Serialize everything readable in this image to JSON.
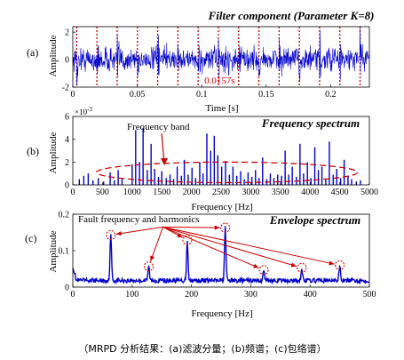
{
  "caption": "（MRPD 分析结果：(a)滤波分量；(b)频谱；(c)包络谱）",
  "colors": {
    "signal": "#0000cc",
    "marker": "#cc0000",
    "axis": "#000000",
    "annotation": "#cc0000"
  },
  "chart_data": [
    {
      "id": "a",
      "panel_label": "(a)",
      "type": "line",
      "title": "Filter component (Parameter K=8)",
      "xlabel": "Time [s]",
      "ylabel": "Amplitude",
      "xlim": [
        0,
        0.23
      ],
      "ylim": [
        -2,
        2.4
      ],
      "xticks": [
        0,
        0.05,
        0.1,
        0.15,
        0.2
      ],
      "xtick_labels": [
        "0",
        "0.05",
        "0.1",
        "0.15",
        "0.2"
      ],
      "yticks": [
        -2,
        0,
        2
      ],
      "ytick_labels": [
        "-2",
        "0",
        "2"
      ],
      "grid": false,
      "marker_lines_x": [
        0.003,
        0.0187,
        0.0344,
        0.0501,
        0.0658,
        0.0815,
        0.0972,
        0.1129,
        0.1286,
        0.1443,
        0.16,
        0.1757,
        0.1914,
        0.2071,
        0.2228
      ],
      "annotation": {
        "text": "0.0157s",
        "x": 0.102,
        "y": -1.55
      },
      "series": [
        {
          "noise_amplitude": 0.75,
          "impulse_amplitude": 2.0,
          "impulse_period": 0.0157,
          "impulse_offset": 0.003
        }
      ]
    },
    {
      "id": "b",
      "panel_label": "(b)",
      "type": "bar",
      "title": "Frequency spectrum",
      "xlabel": "Frequency  [Hz]",
      "ylabel": "Amplitude",
      "y_exponent": "×10",
      "y_exponent_power": "-3",
      "xlim": [
        0,
        5000
      ],
      "ylim": [
        0,
        6
      ],
      "xticks": [
        0,
        500,
        1000,
        1500,
        2000,
        2500,
        3000,
        3500,
        4000,
        4500,
        5000
      ],
      "xtick_labels": [
        "0",
        "500",
        "1000",
        "1500",
        "2000",
        "2500",
        "3000",
        "3500",
        "4000",
        "4500",
        "5000"
      ],
      "yticks": [
        0,
        2,
        4,
        6
      ],
      "ytick_labels": [
        "0",
        "2",
        "4",
        "6"
      ],
      "annotation": {
        "text": "Frequency band",
        "ellipse_center": [
          2600,
          1.1
        ],
        "ellipse_radii": [
          2200,
          0.9
        ]
      },
      "series": [
        {
          "x": [
            110,
            185,
            260,
            340,
            430,
            520,
            630,
            700,
            765,
            830,
            1000,
            1060,
            1125,
            1185,
            1255,
            1320,
            1380,
            1445,
            1500,
            1575,
            1640,
            1700,
            1760,
            1830,
            1880,
            1945,
            2010,
            2070,
            2140,
            2195,
            2260,
            2325,
            2385,
            2445,
            2510,
            2575,
            2640,
            2700,
            2765,
            2830,
            2890,
            2955,
            3020,
            3080,
            3140,
            3200,
            3270,
            3330,
            3390,
            3455,
            3520,
            3580,
            3640,
            3700,
            3770,
            3830,
            3890,
            3955,
            4015,
            4080,
            4140,
            4200,
            4265,
            4325,
            4390,
            4450,
            4515,
            4575,
            4640,
            4700,
            4780,
            4850
          ],
          "y": [
            0.5,
            0.8,
            1.0,
            0.4,
            0.6,
            0.3,
            1.1,
            0.4,
            1.3,
            0.5,
            1.8,
            4.8,
            2.0,
            5.0,
            1.3,
            3.6,
            1.4,
            0.7,
            1.2,
            0.6,
            0.9,
            0.5,
            1.6,
            0.8,
            2.2,
            0.9,
            1.5,
            0.6,
            2.0,
            1.0,
            4.5,
            3.0,
            4.3,
            2.6,
            1.6,
            2.1,
            0.9,
            1.6,
            0.8,
            1.2,
            0.5,
            1.1,
            0.7,
            1.3,
            0.6,
            2.4,
            0.5,
            1.0,
            0.6,
            0.9,
            0.8,
            3.0,
            0.9,
            1.6,
            0.7,
            3.6,
            1.0,
            2.0,
            0.6,
            3.3,
            1.3,
            1.6,
            0.5,
            3.8,
            0.9,
            1.4,
            0.6,
            2.2,
            0.8,
            0.5,
            0.3,
            0.4
          ]
        }
      ]
    },
    {
      "id": "c",
      "panel_label": "(c)",
      "type": "line",
      "title": "Envelope spectrum",
      "xlabel": "Frequency [Hz]",
      "ylabel": "Amplitude",
      "xlim": [
        0,
        500
      ],
      "ylim": [
        0,
        0.2
      ],
      "xticks": [
        0,
        100,
        200,
        300,
        400,
        500
      ],
      "xtick_labels": [
        "0",
        "100",
        "200",
        "300",
        "400",
        "500"
      ],
      "yticks": [
        0,
        0.1,
        0.2
      ],
      "ytick_labels": [
        "0",
        "0.1",
        "0.2"
      ],
      "annotation": {
        "text": "Fault frequency and harmonics",
        "pointer_origin": [
          152,
          0.165
        ]
      },
      "peaks": [
        {
          "x": 64,
          "y": 0.138
        },
        {
          "x": 128,
          "y": 0.052
        },
        {
          "x": 193,
          "y": 0.124
        },
        {
          "x": 257,
          "y": 0.158
        },
        {
          "x": 322,
          "y": 0.042
        },
        {
          "x": 386,
          "y": 0.048
        },
        {
          "x": 450,
          "y": 0.055
        }
      ],
      "series": [
        {
          "baseline": 0.012
        }
      ]
    }
  ]
}
